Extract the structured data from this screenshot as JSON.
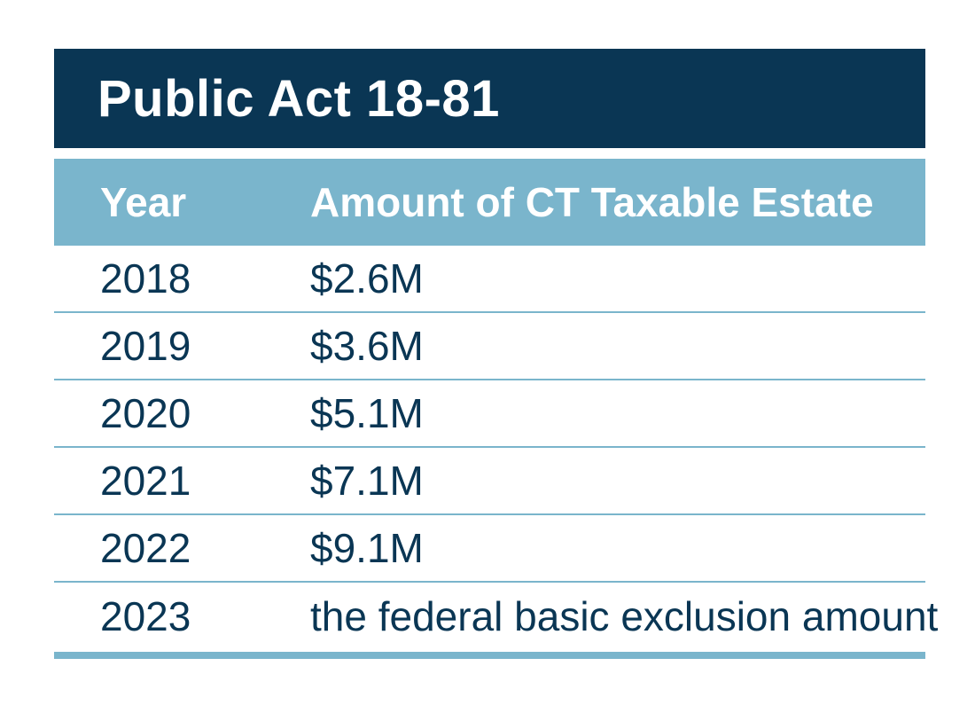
{
  "title": "Public Act 18-81",
  "columns": {
    "year": "Year",
    "amount": "Amount of CT Taxable Estate"
  },
  "rows": [
    {
      "year": "2018",
      "amount": "$2.6M"
    },
    {
      "year": "2019",
      "amount": "$3.6M"
    },
    {
      "year": "2020",
      "amount": "$5.1M"
    },
    {
      "year": "2021",
      "amount": "$7.1M"
    },
    {
      "year": "2022",
      "amount": "$9.1M"
    },
    {
      "year": "2023",
      "amount": "the federal basic exclusion amount"
    }
  ],
  "colors": {
    "title_bg": "#0a3654",
    "header_bg": "#7ab5cc",
    "text_dark": "#0a3654",
    "text_light": "#ffffff"
  }
}
